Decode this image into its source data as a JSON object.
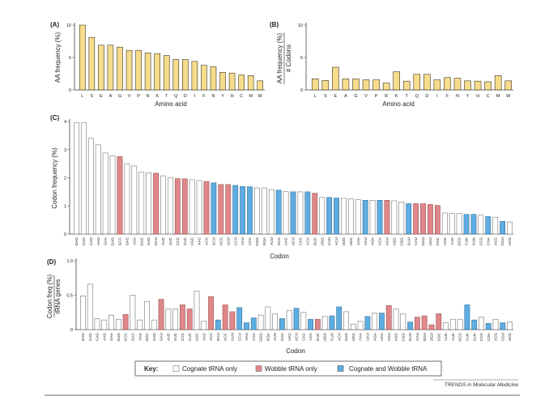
{
  "colors": {
    "aa": "#f7dc8c",
    "aa_stroke": "#3a3323",
    "cognate": "#ffffff",
    "wobble": "#e0878a",
    "both": "#5dade2",
    "stroke": "#777777"
  },
  "chart_data": [
    {
      "panel": "(A)",
      "type": "bar",
      "xlabel": "Amino acid",
      "ylabel": "AA frequency (%)",
      "ylim": [
        0,
        10
      ],
      "yticks": [
        0,
        5,
        10
      ],
      "categories": [
        "L",
        "S",
        "E",
        "A",
        "G",
        "V",
        "P",
        "R",
        "K",
        "T",
        "Q",
        "D",
        "I",
        "F",
        "N",
        "Y",
        "H",
        "C",
        "M",
        "W"
      ],
      "values": [
        10.0,
        8.1,
        6.9,
        6.9,
        6.6,
        6.1,
        6.1,
        5.7,
        5.6,
        5.3,
        4.7,
        4.7,
        4.4,
        3.8,
        3.6,
        2.7,
        2.6,
        2.3,
        2.2,
        1.4
      ]
    },
    {
      "panel": "(B)",
      "type": "bar",
      "xlabel": "Amino acid",
      "ylabel_numerator": "AA frequency (%)",
      "ylabel_denominator": "# Codons",
      "ylim": [
        0,
        10
      ],
      "yticks": [
        0,
        5,
        10
      ],
      "categories": [
        "L",
        "S",
        "E",
        "A",
        "G",
        "V",
        "P",
        "R",
        "K",
        "T",
        "Q",
        "D",
        "I",
        "F",
        "N",
        "Y",
        "H",
        "C",
        "M",
        "W"
      ],
      "values": [
        1.7,
        1.45,
        3.5,
        1.7,
        1.7,
        1.55,
        1.55,
        1.05,
        2.8,
        1.35,
        2.4,
        2.4,
        1.55,
        1.9,
        1.8,
        1.4,
        1.35,
        1.25,
        2.2,
        1.4
      ]
    },
    {
      "panel": "(C)",
      "type": "bar",
      "xlabel": "Codon",
      "ylabel": "Codon frequency (%)",
      "ylim": [
        0,
        4
      ],
      "yticks": [
        0,
        1,
        2,
        3,
        4
      ],
      "categories": [
        "GAG",
        "CUG",
        "CAG",
        "AAG",
        "GAA",
        "GUG",
        "GCC",
        "GAC",
        "AAA",
        "GGC",
        "AUG",
        "GAU",
        "AUC",
        "UUC",
        "CCC",
        "CUC",
        "AGC",
        "AAC",
        "ACC",
        "GCU",
        "UCC",
        "UUU",
        "CCU",
        "AAU",
        "CCA",
        "GGG",
        "GGA",
        "AUU",
        "GCA",
        "UAC",
        "UCU",
        "CAC",
        "ACA",
        "GUC",
        "UGG",
        "CUU",
        "ACU",
        "UUG",
        "UGC",
        "CAA",
        "UAU",
        "AGA",
        "UCA",
        "AGU",
        "AGG",
        "CGG",
        "GUU",
        "CAU",
        "GGU",
        "UGU",
        "CGC",
        "UUA",
        "AUA",
        "GCG",
        "CUA",
        "GUA",
        "CCG",
        "CGA",
        "ACG",
        "CGU",
        "UCG"
      ],
      "trna_class": [
        "cognate",
        "cognate",
        "cognate",
        "cognate",
        "cognate",
        "cognate",
        "wobble",
        "cognate",
        "cognate",
        "cognate",
        "cognate",
        "wobble",
        "cognate",
        "cognate",
        "wobble",
        "wobble",
        "cognate",
        "cognate",
        "wobble",
        "both",
        "wobble",
        "wobble",
        "both",
        "both",
        "both",
        "cognate",
        "cognate",
        "cognate",
        "both",
        "cognate",
        "both",
        "cognate",
        "both",
        "wobble",
        "cognate",
        "both",
        "both",
        "cognate",
        "cognate",
        "cognate",
        "both",
        "cognate",
        "both",
        "wobble",
        "cognate",
        "cognate",
        "both",
        "wobble",
        "wobble",
        "wobble",
        "wobble",
        "cognate",
        "cognate",
        "cognate",
        "both",
        "both",
        "cognate",
        "both",
        "cognate",
        "both",
        "cognate"
      ],
      "values": [
        3.95,
        3.95,
        3.4,
        3.17,
        2.88,
        2.78,
        2.75,
        2.5,
        2.42,
        2.2,
        2.18,
        2.16,
        2.07,
        2.01,
        1.97,
        1.96,
        1.93,
        1.9,
        1.87,
        1.82,
        1.76,
        1.76,
        1.73,
        1.69,
        1.68,
        1.64,
        1.64,
        1.58,
        1.56,
        1.51,
        1.5,
        1.5,
        1.5,
        1.45,
        1.3,
        1.3,
        1.28,
        1.27,
        1.25,
        1.22,
        1.2,
        1.2,
        1.2,
        1.2,
        1.18,
        1.14,
        1.08,
        1.08,
        1.08,
        1.05,
        1.02,
        0.75,
        0.73,
        0.73,
        0.7,
        0.7,
        0.67,
        0.62,
        0.6,
        0.45,
        0.43
      ]
    },
    {
      "panel": "(D)",
      "type": "bar",
      "xlabel": "Codon",
      "ylabel_numerator": "Codon freq (%)",
      "ylabel_denominator": "tRNA genes",
      "ylim": [
        0,
        1
      ],
      "yticks": [
        0,
        0.5,
        1.0
      ],
      "ytick_labels": [
        "0",
        "0.5",
        "1.0"
      ],
      "values": [
        0.49,
        0.66,
        0.16,
        0.14,
        0.21,
        0.15,
        0.22,
        0.5,
        0.14,
        0.41,
        0.14,
        0.44,
        0.3,
        0.3,
        0.36,
        0.3,
        0.56,
        0.12,
        0.48,
        0.14,
        0.36,
        0.26,
        0.32,
        0.1,
        0.17,
        0.21,
        0.33,
        0.23,
        0.16,
        0.28,
        0.31,
        0.25,
        0.15,
        0.15,
        0.19,
        0.2,
        0.33,
        0.26,
        0.08,
        0.12,
        0.19,
        0.24,
        0.24,
        0.35,
        0.3,
        0.23,
        0.11,
        0.18,
        0.2,
        0.07,
        0.23,
        0.1,
        0.15,
        0.15,
        0.36,
        0.14,
        0.18,
        0.09,
        0.15,
        0.1,
        0.11
      ]
    }
  ],
  "key": {
    "title": "Key:",
    "items": [
      {
        "label": "Cognate tRNA only",
        "class": "cognate"
      },
      {
        "label": "Wobble tRNA only",
        "class": "wobble"
      },
      {
        "label": "Cognate and Wobble tRNA",
        "class": "both"
      }
    ]
  },
  "footer": "TRENDS in Molecular Medicine"
}
